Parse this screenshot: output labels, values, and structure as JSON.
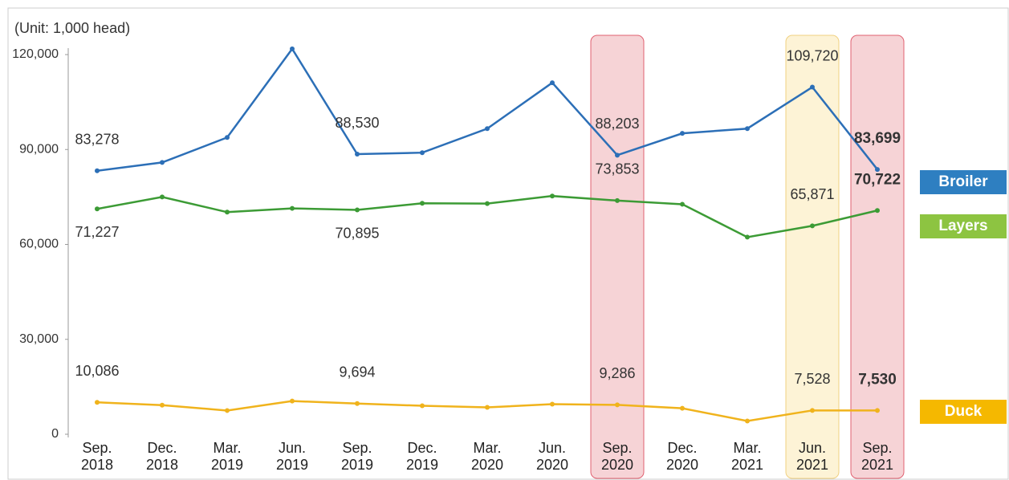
{
  "chart_data": {
    "type": "line",
    "subtitle": "(Unit: 1,000 head)",
    "categories": [
      "Sep.\n2018",
      "Dec.\n2018",
      "Mar.\n2019",
      "Jun.\n2019",
      "Sep.\n2019",
      "Dec.\n2019",
      "Mar.\n2020",
      "Jun.\n2020",
      "Sep.\n2020",
      "Dec.\n2020",
      "Mar.\n2021",
      "Jun.\n2021",
      "Sep.\n2021"
    ],
    "series": [
      {
        "name": "Broiler",
        "color": "#2c6fb7",
        "legend_color": "#2e7fc1",
        "values": [
          83278,
          85900,
          93800,
          121800,
          88530,
          89000,
          96600,
          111100,
          88203,
          95100,
          96600,
          109720,
          83699
        ],
        "value_labels": [
          "83,278",
          null,
          null,
          null,
          "88,530",
          null,
          null,
          null,
          "88,203",
          null,
          null,
          "109,720",
          "83,699"
        ]
      },
      {
        "name": "Layers",
        "color": "#3c9b35",
        "legend_color": "#8dc441",
        "values": [
          71227,
          75000,
          70200,
          71400,
          70895,
          73000,
          72900,
          75300,
          73853,
          72700,
          62300,
          65871,
          70722
        ],
        "value_labels": [
          "71,227",
          null,
          null,
          null,
          "70,895",
          null,
          null,
          null,
          "73,853",
          null,
          null,
          "65,871",
          "70,722"
        ]
      },
      {
        "name": "Duck",
        "color": "#f0b31c",
        "legend_color": "#f5b800",
        "values": [
          10086,
          9200,
          7500,
          10500,
          9694,
          9000,
          8500,
          9500,
          9286,
          8200,
          4200,
          7528,
          7530
        ],
        "value_labels": [
          "10,086",
          null,
          null,
          null,
          "9,694",
          null,
          null,
          null,
          "9,286",
          null,
          null,
          "7,528",
          "7,530"
        ]
      }
    ],
    "ylim": [
      0,
      120000
    ],
    "yticks": [
      0,
      {
        "value": 30000,
        "label": "30,000"
      },
      {
        "value": 60000,
        "label": "60,000"
      },
      {
        "value": 90000,
        "label": "90,000"
      },
      {
        "value": 120000,
        "label": "120,000"
      }
    ],
    "grid": false,
    "highlights": [
      {
        "index": 8,
        "fill": "#f6d3d6",
        "stroke": "#e06070"
      },
      {
        "index": 11,
        "fill": "#fdf3d6",
        "stroke": "#f0d080"
      },
      {
        "index": 12,
        "fill": "#f6d3d6",
        "stroke": "#e06070"
      }
    ],
    "bold_last": true,
    "legend": "right"
  }
}
